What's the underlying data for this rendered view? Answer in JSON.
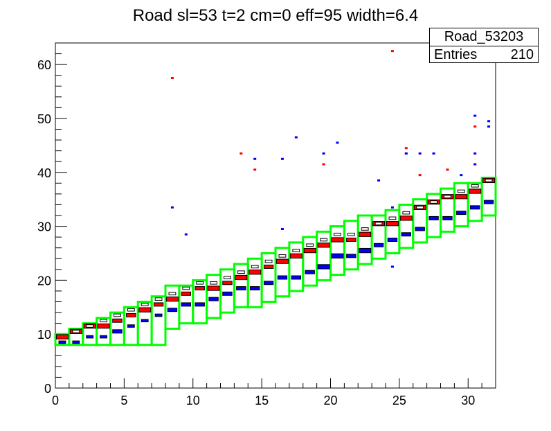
{
  "chart_data": {
    "type": "heatmap",
    "title": "Road sl=53 t=2 cm=0 eff=95 width=6.4",
    "xlabel": "",
    "ylabel": "",
    "xlim": [
      0,
      32
    ],
    "ylim": [
      0,
      64
    ],
    "xticks": [
      0,
      5,
      10,
      15,
      20,
      25,
      30
    ],
    "yticks": [
      0,
      10,
      20,
      30,
      40,
      50,
      60
    ],
    "grid": false,
    "stats_box": {
      "name": "Road_53203",
      "entries_label": "Entries",
      "entries_value": "210"
    },
    "series": [
      {
        "name": "",
        "color": "#00ff00",
        "style": "road-window",
        "x": [
          0,
          1,
          2,
          3,
          4,
          5,
          6,
          7,
          8,
          9,
          10,
          11,
          12,
          13,
          14,
          15,
          16,
          17,
          18,
          19,
          20,
          21,
          22,
          23,
          24,
          25,
          26,
          27,
          28,
          29,
          30,
          31
        ],
        "ylow": [
          8,
          8,
          8,
          8,
          8,
          8,
          8,
          8,
          11,
          12,
          12,
          13,
          14,
          15,
          15,
          16,
          17,
          18,
          19,
          20,
          21,
          22,
          23,
          24,
          25,
          26,
          27,
          28,
          29,
          30,
          31,
          32
        ],
        "yhigh": [
          10,
          11,
          12,
          13,
          14,
          15,
          16,
          17,
          19,
          19,
          20,
          21,
          22,
          23,
          24,
          25,
          26,
          27,
          28,
          29,
          30,
          31,
          32,
          32,
          33,
          34,
          35,
          36,
          37,
          38,
          38,
          39
        ]
      },
      {
        "name": "",
        "color": "#ff0000",
        "style": "filled-box",
        "x": [
          0,
          1,
          2,
          3,
          4,
          5,
          6,
          7,
          8,
          9,
          10,
          11,
          12,
          13,
          14,
          15,
          16,
          17,
          18,
          19,
          20,
          21,
          22,
          23,
          24,
          25,
          26,
          27,
          28,
          29,
          30,
          31
        ],
        "y": [
          9,
          10,
          11,
          11,
          12,
          13,
          14,
          15,
          16,
          17,
          18,
          18,
          19,
          20,
          21,
          22,
          23,
          24,
          25,
          26,
          27,
          27,
          28,
          30,
          30,
          31,
          33,
          34,
          35,
          35,
          36,
          38
        ],
        "z": [
          3,
          3,
          3,
          3,
          2,
          2,
          3,
          2,
          3,
          2,
          2,
          3,
          2,
          3,
          3,
          2,
          3,
          3,
          3,
          3,
          3,
          2,
          3,
          3,
          3,
          3,
          3,
          3,
          3,
          3,
          3,
          3
        ]
      },
      {
        "name": "",
        "color": "#0000ff",
        "style": "filled-box",
        "x": [
          0,
          1,
          2,
          3,
          4,
          5,
          6,
          7,
          8,
          9,
          10,
          11,
          12,
          13,
          14,
          15,
          16,
          17,
          18,
          19,
          20,
          21,
          22,
          23,
          24,
          25,
          26,
          27,
          28,
          29,
          30,
          31
        ],
        "y": [
          8,
          8,
          9,
          9,
          10,
          11,
          12,
          13,
          14,
          15,
          15,
          16,
          17,
          18,
          18,
          19,
          20,
          20,
          21,
          22,
          24,
          24,
          25,
          26,
          27,
          28,
          29,
          31,
          31,
          32,
          33,
          34
        ],
        "z": [
          1,
          1,
          1,
          1,
          2,
          1,
          1,
          1,
          2,
          2,
          2,
          2,
          2,
          2,
          2,
          2,
          2,
          2,
          2,
          3,
          3,
          2,
          3,
          2,
          2,
          2,
          2,
          2,
          2,
          2,
          2,
          2
        ]
      },
      {
        "name": "",
        "color": "#000000",
        "style": "box",
        "x": [
          1,
          2,
          3,
          4,
          5,
          6,
          7,
          8,
          9,
          10,
          11,
          12,
          13,
          14,
          15,
          16,
          17,
          18,
          19,
          20,
          21,
          22,
          23,
          24,
          25,
          26,
          27,
          28,
          29,
          30,
          31
        ],
        "y": [
          10,
          11,
          12,
          13,
          14,
          15,
          16,
          17,
          18,
          19,
          19,
          20,
          21,
          22,
          23,
          24,
          25,
          26,
          27,
          28,
          28,
          29,
          30,
          31,
          32,
          33,
          34,
          35,
          36,
          37,
          38
        ],
        "z": [
          1,
          1,
          1,
          1,
          1,
          1,
          1,
          1,
          1,
          1,
          1,
          1,
          1,
          1,
          1,
          1,
          1,
          1,
          1,
          1,
          1,
          1,
          1,
          1,
          1,
          1,
          1,
          1,
          1,
          1,
          1
        ]
      },
      {
        "name": "",
        "color": "#ff0000",
        "style": "outlier",
        "x": [
          8.5,
          13.5,
          14.5,
          19.5,
          24.5,
          25.5,
          25.5,
          26.5,
          28.5,
          30.5
        ],
        "y": [
          57.5,
          43.5,
          40.5,
          41.5,
          62.5,
          44.5,
          43.5,
          39.5,
          40.5,
          48.5
        ]
      },
      {
        "name": "",
        "color": "#0000ff",
        "style": "outlier",
        "x": [
          8.5,
          9.5,
          14.5,
          16.5,
          16.5,
          17.5,
          19.5,
          20.5,
          23.5,
          24.5,
          24.5,
          25.5,
          26.5,
          27.5,
          29.5,
          30.5,
          30.5,
          30.5,
          31.5,
          31.5
        ],
        "y": [
          33.5,
          28.5,
          42.5,
          42.5,
          29.5,
          46.5,
          43.5,
          45.5,
          38.5,
          22.5,
          33.5,
          43.5,
          43.5,
          43.5,
          39.5,
          50.5,
          43.5,
          41.5,
          49.5,
          48.5
        ]
      }
    ]
  }
}
